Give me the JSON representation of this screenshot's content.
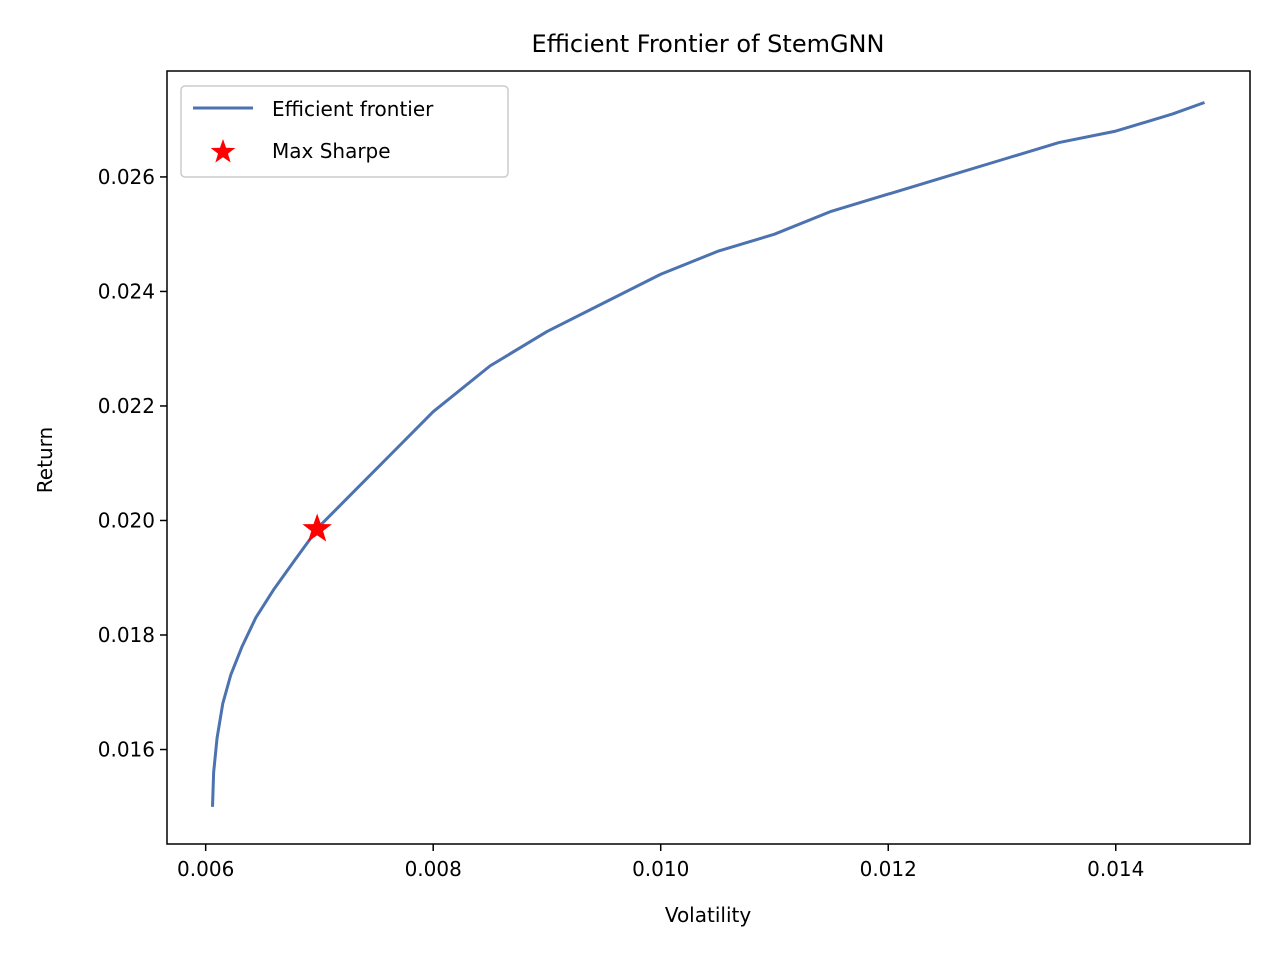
{
  "chart_data": {
    "type": "line",
    "title": "Efficient Frontier of StemGNN",
    "xlabel": "Volatility",
    "ylabel": "Return",
    "xlim": [
      0.00566,
      0.01518
    ],
    "ylim": [
      0.01435,
      0.02785
    ],
    "xticks": [
      "0.006",
      "0.008",
      "0.010",
      "0.012",
      "0.014"
    ],
    "xtick_values": [
      0.006,
      0.008,
      0.01,
      0.012,
      0.014
    ],
    "yticks": [
      "0.016",
      "0.018",
      "0.020",
      "0.022",
      "0.024",
      "0.026"
    ],
    "ytick_values": [
      0.016,
      0.018,
      0.02,
      0.022,
      0.024,
      0.026
    ],
    "legend_position": "top-left",
    "series": [
      {
        "name": "Efficient frontier",
        "color": "#4c72b0",
        "x": [
          0.00606,
          0.00607,
          0.0061,
          0.00615,
          0.00622,
          0.00632,
          0.00644,
          0.0066,
          0.00678,
          0.007,
          0.0073,
          0.0076,
          0.008,
          0.0085,
          0.009,
          0.0095,
          0.01,
          0.0105,
          0.011,
          0.0115,
          0.012,
          0.0125,
          0.013,
          0.0135,
          0.014,
          0.0145,
          0.01478
        ],
        "y": [
          0.015,
          0.0156,
          0.0162,
          0.0168,
          0.0173,
          0.0178,
          0.0183,
          0.0188,
          0.0193,
          0.0199,
          0.0205,
          0.0211,
          0.0219,
          0.0227,
          0.0233,
          0.0238,
          0.0243,
          0.0247,
          0.025,
          0.0254,
          0.0257,
          0.026,
          0.0263,
          0.0266,
          0.0268,
          0.0271,
          0.0273
        ]
      }
    ],
    "markers": [
      {
        "name": "Max Sharpe",
        "marker": "star",
        "color": "#ff0000",
        "x": 0.00698,
        "y": 0.01985
      }
    ]
  }
}
